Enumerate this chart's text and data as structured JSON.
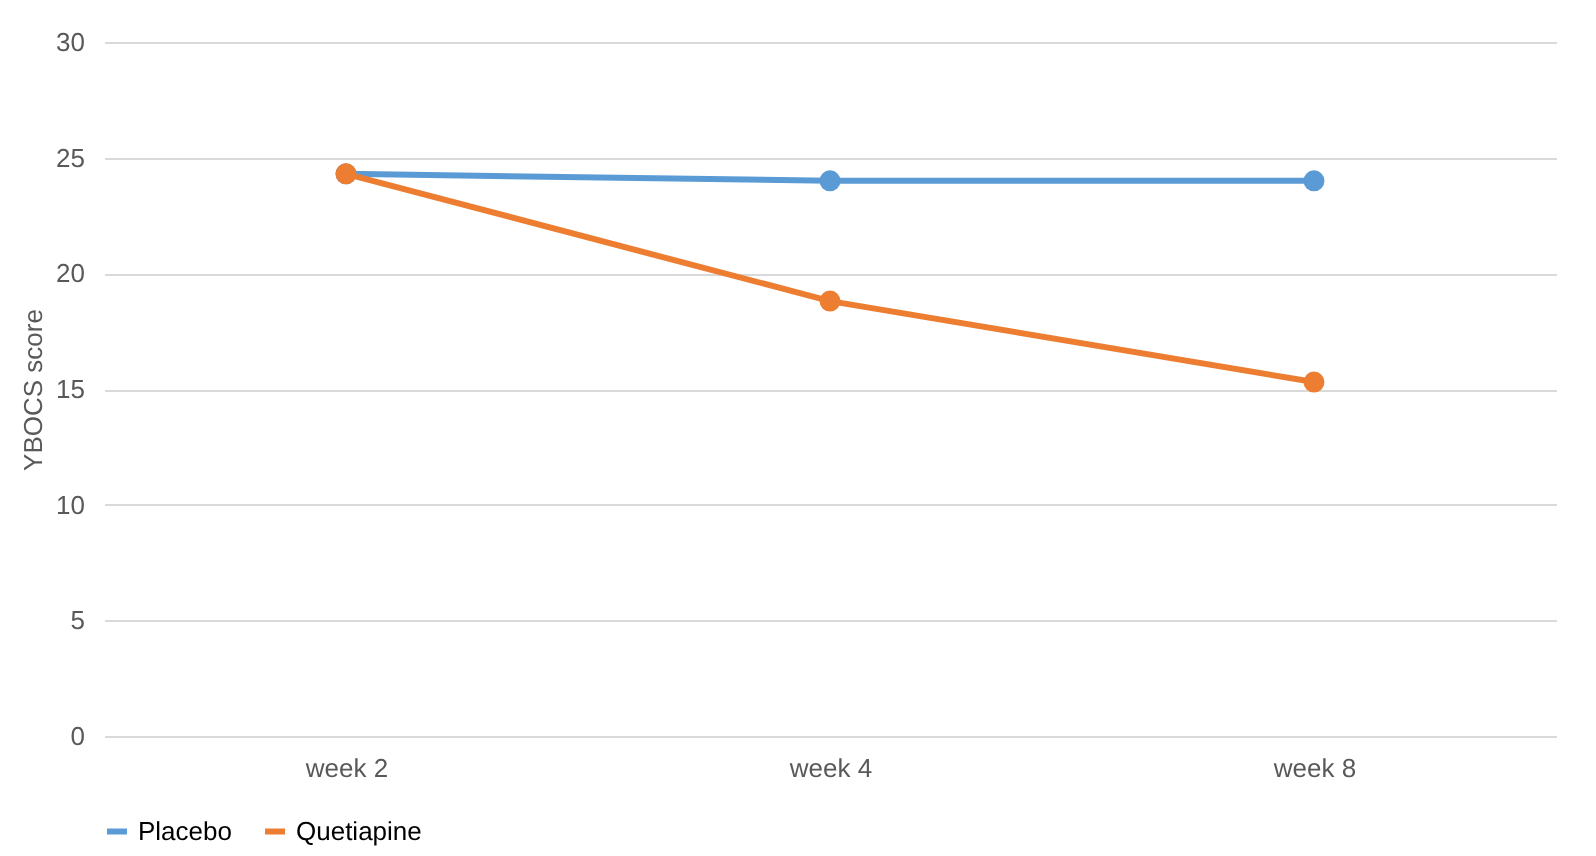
{
  "chart_data": {
    "type": "line",
    "ylabel": "YBOCS score",
    "categories": [
      "week 2",
      "week 4",
      "week 8"
    ],
    "series": [
      {
        "name": "Placebo",
        "color": "#5b9bd5",
        "values": [
          24.3,
          24.0,
          24.0
        ]
      },
      {
        "name": "Quetiapine",
        "color": "#ed7d31",
        "values": [
          24.3,
          18.8,
          15.3
        ]
      }
    ],
    "ylim": [
      0,
      30
    ],
    "yticks": [
      0,
      5,
      10,
      15,
      20,
      25,
      30
    ],
    "grid": "y",
    "legend": "bottom",
    "marker": "circle",
    "line_style": "solid"
  }
}
